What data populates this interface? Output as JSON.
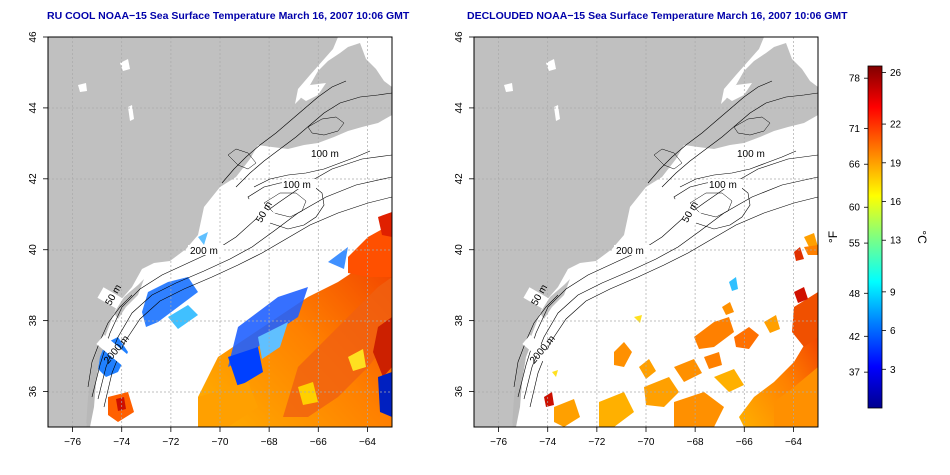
{
  "panels": [
    {
      "title": "RU COOL NOAA−15 Sea Surface Temperature March 16, 2007 10:06 GMT",
      "mode": "raw"
    },
    {
      "title": "DECLOUDED NOAA−15 Sea Surface Temperature March 16, 2007 10:06 GMT",
      "mode": "declouded"
    }
  ],
  "axes": {
    "lon_ticks": [
      "−76",
      "−74",
      "−72",
      "−70",
      "−68",
      "−66",
      "−64"
    ],
    "lat_ticks": [
      "36",
      "38",
      "40",
      "42",
      "44",
      "46"
    ],
    "lon_range": [
      -77,
      -63
    ],
    "lat_range": [
      35,
      46
    ]
  },
  "contour_labels": [
    "100 m",
    "100 m",
    "50 m",
    "200 m",
    "50 m",
    "2000 m"
  ],
  "colorbar": {
    "fahrenheit_label": "°F",
    "celsius_label": "°C",
    "fahrenheit_ticks": [
      "78",
      "71",
      "66",
      "60",
      "55",
      "48",
      "42",
      "37"
    ],
    "celsius_ticks": [
      "26",
      "22",
      "19",
      "16",
      "13",
      "9",
      "6",
      "3"
    ],
    "range_celsius": [
      0,
      26.5
    ],
    "colors": [
      "#00008f",
      "#0000ff",
      "#0080ff",
      "#00ffff",
      "#80ff80",
      "#ffff00",
      "#ff8000",
      "#ff0000",
      "#800000"
    ]
  },
  "colors": {
    "land": "#c0c0c0",
    "ocean_cloud": "#ffffff",
    "title": "#0000aa"
  }
}
